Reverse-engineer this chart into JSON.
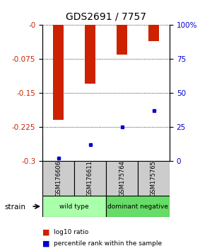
{
  "title": "GDS2691 / 7757",
  "samples": [
    "GSM176606",
    "GSM176611",
    "GSM175764",
    "GSM175765"
  ],
  "log10_ratio": [
    -0.21,
    -0.13,
    -0.065,
    -0.035
  ],
  "percentile_rank": [
    2.0,
    12.0,
    25.0,
    37.0
  ],
  "ylim_left": [
    -0.3,
    0.0
  ],
  "ylim_right": [
    0,
    100
  ],
  "yticks_left": [
    0.0,
    -0.075,
    -0.15,
    -0.225,
    -0.3
  ],
  "yticks_right": [
    100,
    75,
    50,
    25,
    0
  ],
  "bar_color": "#cc2200",
  "dot_color": "#0000cc",
  "bg_color": "#ffffff",
  "label_color_left": "#cc2200",
  "label_color_right": "#0000cc",
  "grid_color": "#000000",
  "strain_label": "strain",
  "legend_ratio": "log10 ratio",
  "legend_pct": "percentile rank within the sample",
  "group_info": [
    {
      "start": 0,
      "end": 1,
      "label": "wild type",
      "color": "#aaffaa"
    },
    {
      "start": 2,
      "end": 3,
      "label": "dominant negative",
      "color": "#66dd66"
    }
  ],
  "sample_box_color": "#cccccc"
}
